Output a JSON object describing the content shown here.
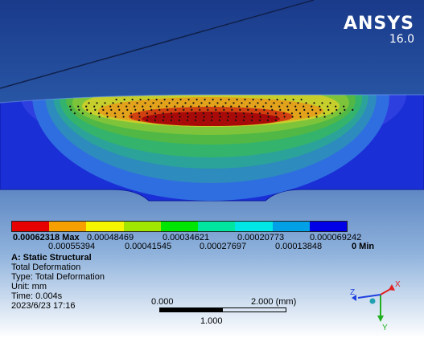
{
  "app": {
    "brand": "ANSYS",
    "version": "16.0"
  },
  "legend": {
    "colors": [
      "#e60000",
      "#f5a000",
      "#f5f500",
      "#a0e600",
      "#00e600",
      "#00e6a0",
      "#00e6e6",
      "#00a0e6",
      "#0000e6"
    ],
    "top_labels": {
      "max": "0.00062318 Max",
      "l2": "0.00048469",
      "l3": "0.00034621",
      "l4": "0.00020773",
      "l5": "0.000069242"
    },
    "bottom_labels": {
      "l1": "0.00055394",
      "l2": "0.00041545",
      "l3": "0.00027697",
      "l4": "0.00013848",
      "min": "0 Min"
    }
  },
  "info": {
    "title": "A: Static Structural",
    "result": "Total Deformation",
    "type": "Type: Total Deformation",
    "unit": "Unit: mm",
    "time": "Time: 0.004s",
    "timestamp": "2023/6/23 17:16"
  },
  "scale": {
    "start": "0.000",
    "end": "2.000 (mm)",
    "mid": "1.000"
  },
  "triad": {
    "x": "X",
    "y": "Y",
    "z": "Z"
  }
}
